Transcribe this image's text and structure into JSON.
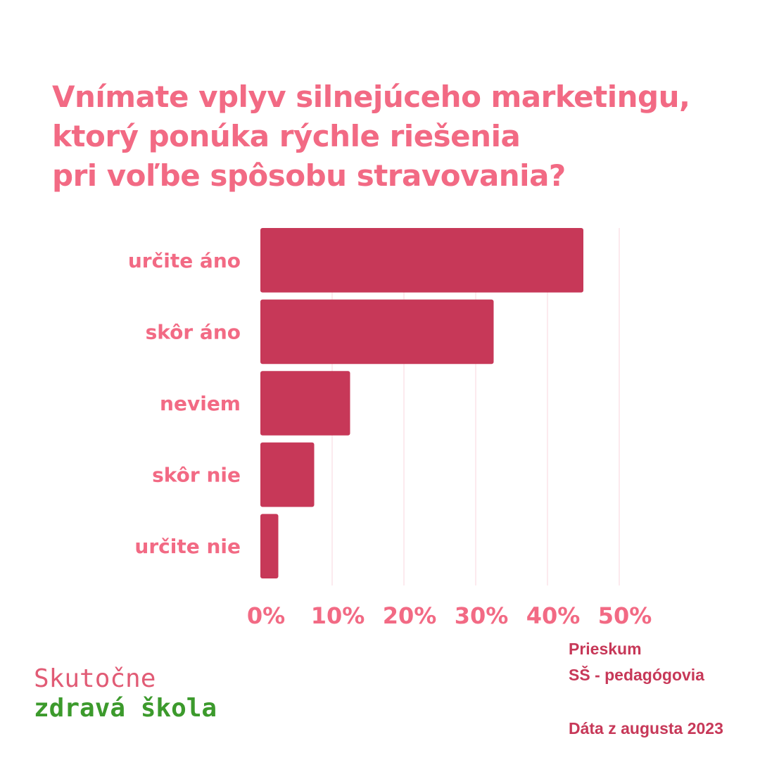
{
  "title_lines": [
    "Vnímate vplyv silnejúceho marketingu,",
    "ktorý ponúka rýchle riešenia",
    "pri voľbe spôsobu stravovania?"
  ],
  "chart_data": {
    "type": "bar",
    "orientation": "horizontal",
    "categories": [
      "určite áno",
      "skôr áno",
      "neviem",
      "skôr nie",
      "určite nie"
    ],
    "values": [
      45,
      32.5,
      12.5,
      7.5,
      2.5
    ],
    "xlim": [
      0,
      50
    ],
    "xticks": [
      0,
      10,
      20,
      30,
      40,
      50
    ],
    "xtick_labels": [
      "0%",
      "10%",
      "20%",
      "30%",
      "40%",
      "50%"
    ],
    "grid": true,
    "bar_color": "#c73858"
  },
  "source": {
    "line1": "Prieskum",
    "line2": "SŠ - pedagógovia",
    "date": "Dáta z augusta 2023"
  },
  "logo": {
    "line1": "Skutočne",
    "line2": "zdravá škola"
  },
  "colors": {
    "title": "#f26a84",
    "labels": "#f26a84",
    "bars": "#c73858",
    "logo_top": "#e15b75",
    "logo_bottom": "#3c9a2c"
  }
}
